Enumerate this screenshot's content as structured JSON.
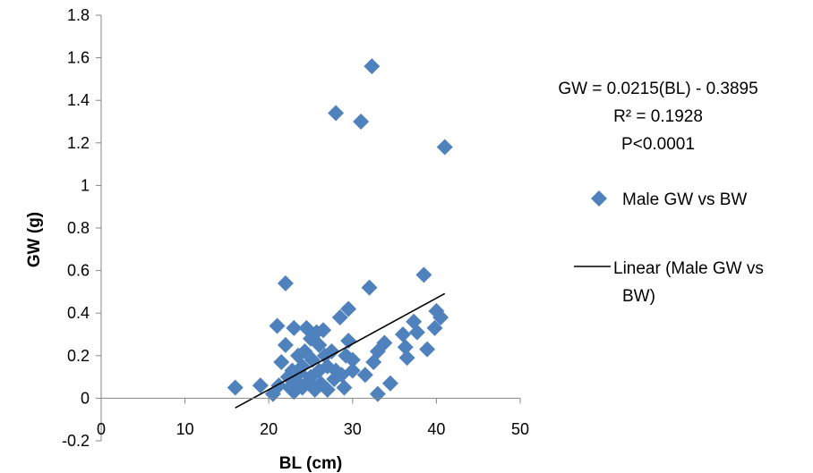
{
  "chart_data": {
    "type": "scatter",
    "xlabel": "BL (cm)",
    "ylabel": "GW (g)",
    "xlim": [
      0,
      50
    ],
    "ylim": [
      -0.2,
      1.8
    ],
    "x_ticks": [
      "0",
      "10",
      "20",
      "30",
      "40",
      "50"
    ],
    "y_ticks": [
      "-0.2",
      "0",
      "0.2",
      "0.4",
      "0.6",
      "0.8",
      "1",
      "1.2",
      "1.4",
      "1.6",
      "1.8"
    ],
    "grid": false,
    "annotation_lines": [
      "GW = 0.0215(BL) - 0.3895",
      "R² = 0.1928",
      "P<0.0001"
    ],
    "legend": {
      "placement": "right",
      "entries": [
        {
          "label": "Male GW vs BW",
          "marker": "diamond",
          "color": "#4F81BD"
        },
        {
          "label_lines": [
            "Linear (Male GW vs",
            "BW)"
          ],
          "marker": "line",
          "color": "#000000"
        }
      ]
    },
    "series": [
      {
        "name": "Male GW vs BW",
        "color": "#4F81BD",
        "marker": "diamond",
        "points": [
          [
            16.0,
            0.05
          ],
          [
            19.0,
            0.06
          ],
          [
            20.5,
            0.02
          ],
          [
            21.0,
            0.34
          ],
          [
            21.2,
            0.06
          ],
          [
            21.5,
            0.17
          ],
          [
            22.0,
            0.25
          ],
          [
            22.0,
            0.54
          ],
          [
            22.3,
            0.1
          ],
          [
            22.5,
            0.05
          ],
          [
            22.8,
            0.13
          ],
          [
            23.0,
            0.33
          ],
          [
            23.0,
            0.03
          ],
          [
            23.2,
            0.08
          ],
          [
            23.5,
            0.2
          ],
          [
            23.7,
            0.12
          ],
          [
            24.0,
            0.15
          ],
          [
            24.0,
            0.05
          ],
          [
            24.3,
            0.22
          ],
          [
            24.5,
            0.33
          ],
          [
            24.7,
            0.08
          ],
          [
            25.0,
            0.28
          ],
          [
            25.0,
            0.1
          ],
          [
            25.2,
            0.18
          ],
          [
            25.5,
            0.04
          ],
          [
            25.7,
            0.31
          ],
          [
            26.0,
            0.25
          ],
          [
            26.0,
            0.13
          ],
          [
            26.2,
            0.07
          ],
          [
            26.5,
            0.32
          ],
          [
            26.7,
            0.2
          ],
          [
            27.0,
            0.15
          ],
          [
            27.0,
            0.04
          ],
          [
            27.5,
            0.22
          ],
          [
            27.8,
            0.09
          ],
          [
            28.0,
            0.13
          ],
          [
            28.0,
            1.34
          ],
          [
            28.5,
            0.38
          ],
          [
            28.7,
            0.11
          ],
          [
            29.0,
            0.05
          ],
          [
            29.2,
            0.2
          ],
          [
            29.5,
            0.27
          ],
          [
            29.5,
            0.42
          ],
          [
            30.0,
            0.13
          ],
          [
            30.0,
            0.18
          ],
          [
            31.0,
            1.3
          ],
          [
            31.5,
            0.11
          ],
          [
            32.0,
            0.52
          ],
          [
            32.3,
            1.56
          ],
          [
            32.5,
            0.17
          ],
          [
            33.0,
            0.22
          ],
          [
            33.0,
            0.02
          ],
          [
            33.8,
            0.26
          ],
          [
            34.5,
            0.07
          ],
          [
            36.0,
            0.3
          ],
          [
            36.3,
            0.24
          ],
          [
            36.5,
            0.19
          ],
          [
            37.3,
            0.36
          ],
          [
            37.7,
            0.31
          ],
          [
            38.5,
            0.58
          ],
          [
            38.9,
            0.23
          ],
          [
            39.8,
            0.33
          ],
          [
            40.0,
            0.41
          ],
          [
            40.5,
            0.38
          ],
          [
            41.0,
            1.18
          ]
        ]
      },
      {
        "name": "Linear (Male GW vs BW)",
        "type": "line",
        "color": "#000000",
        "x": [
          16,
          41
        ],
        "y": [
          -0.0455,
          0.492
        ]
      }
    ]
  }
}
